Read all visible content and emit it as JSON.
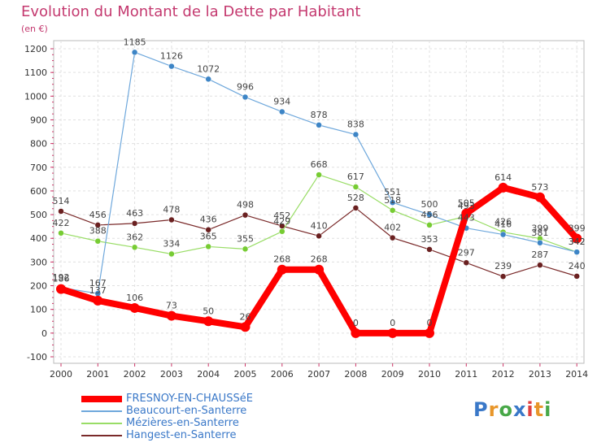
{
  "title": "Evolution du Montant de la Dette par Habitant",
  "subtitle": "(en €)",
  "logo": {
    "letters": [
      {
        "ch": "P",
        "color": "#3a78c8"
      },
      {
        "ch": "r",
        "color": "#e8962a"
      },
      {
        "ch": "o",
        "color": "#48a848"
      },
      {
        "ch": "x",
        "color": "#3a78c8"
      },
      {
        "ch": "i",
        "color": "#e04040"
      },
      {
        "ch": "t",
        "color": "#e8962a"
      },
      {
        "ch": "i",
        "color": "#48a848"
      }
    ]
  },
  "chart_data": {
    "type": "line",
    "title": "Evolution du Montant de la Dette par Habitant",
    "subtitle": "(en €)",
    "x": [
      "2000",
      "2001",
      "2002",
      "2003",
      "2004",
      "2005",
      "2006",
      "2007",
      "2008",
      "2009",
      "2010",
      "2011",
      "2012",
      "2013",
      "2014"
    ],
    "ylim": [
      -100,
      1200
    ],
    "yticks": [
      -100,
      0,
      100,
      200,
      300,
      400,
      500,
      600,
      700,
      800,
      900,
      1000,
      1100,
      1200
    ],
    "grid": true,
    "legend_position": "bottom-left",
    "series": [
      {
        "name": "Hangest-en-Santerre",
        "color": "#7a2a2a",
        "dot": "#6a2020",
        "width": 1.2,
        "marker": 3.5,
        "values": [
          514,
          456,
          463,
          478,
          436,
          498,
          452,
          410,
          528,
          402,
          353,
          297,
          239,
          287,
          240
        ]
      },
      {
        "name": "Mézières-en-Santerre",
        "color": "#99dd66",
        "dot": "#77cc33",
        "width": 1.2,
        "marker": 3.5,
        "values": [
          422,
          388,
          362,
          334,
          365,
          355,
          429,
          668,
          617,
          518,
          456,
          493,
          426,
          399,
          342
        ]
      },
      {
        "name": "Beaucourt-en-Santerre",
        "color": "#6fa8dc",
        "dot": "#3d85c6",
        "width": 1.2,
        "marker": 3.5,
        "values": [
          192,
          167,
          1185,
          1126,
          1072,
          996,
          934,
          878,
          838,
          551,
          500,
          443,
          416,
          381,
          342
        ]
      },
      {
        "name": "FRESNOY-EN-CHAUSSéE",
        "color": "#ff0000",
        "dot": "#ff0000",
        "width": 8,
        "marker": 6,
        "values": [
          186,
          137,
          106,
          73,
          50,
          26,
          268,
          268,
          0,
          0,
          0,
          505,
          614,
          573,
          399
        ]
      }
    ],
    "legend_order": [
      "FRESNOY-EN-CHAUSSéE",
      "Beaucourt-en-Santerre",
      "Mézières-en-Santerre",
      "Hangest-en-Santerre"
    ]
  }
}
